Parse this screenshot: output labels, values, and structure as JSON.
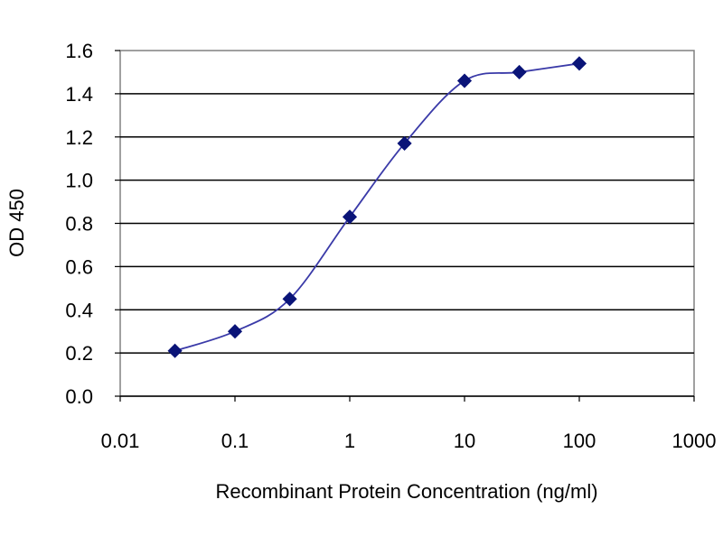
{
  "chart_data": {
    "type": "line",
    "title": "",
    "xlabel": "Recombinant Protein Concentration (ng/ml)",
    "ylabel": "OD 450",
    "x_scale": "log",
    "xlim": [
      0.01,
      1000
    ],
    "ylim": [
      0.0,
      1.6
    ],
    "x_tick_labels": [
      "0.01",
      "0.1",
      "1",
      "10",
      "100",
      "1000"
    ],
    "x_tick_values": [
      0.01,
      0.1,
      1,
      10,
      100,
      1000
    ],
    "y_tick_labels": [
      "0.0",
      "0.2",
      "0.4",
      "0.6",
      "0.8",
      "1.0",
      "1.2",
      "1.4",
      "1.6"
    ],
    "y_tick_values": [
      0.0,
      0.2,
      0.4,
      0.6,
      0.8,
      1.0,
      1.2,
      1.4,
      1.6
    ],
    "grid": "horizontal",
    "legend": "none",
    "series": [
      {
        "x": [
          0.03,
          0.1,
          0.3,
          1,
          3,
          10,
          30,
          100
        ],
        "y": [
          0.21,
          0.3,
          0.45,
          0.83,
          1.17,
          1.46,
          1.5,
          1.54
        ],
        "marker": "diamond"
      }
    ],
    "colors": {
      "line": "#3a3aa8",
      "marker": "#0a1478",
      "grid": "#000000",
      "frame": "#808080"
    }
  }
}
